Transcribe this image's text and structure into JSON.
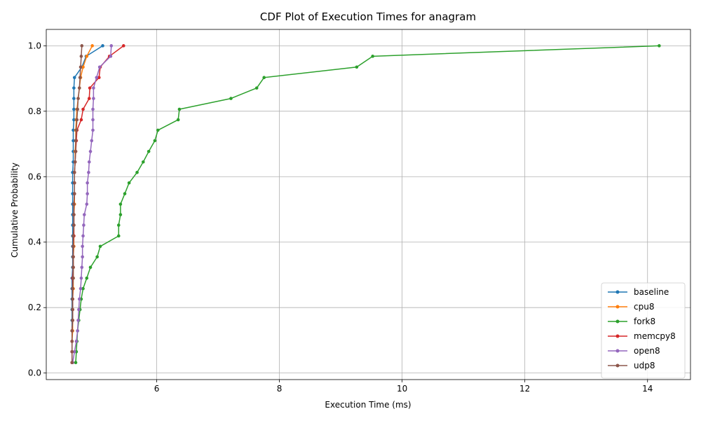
{
  "chart_data": {
    "type": "line",
    "title": "CDF Plot of Execution Times for anagram",
    "xlabel": "Execution Time (ms)",
    "ylabel": "Cumulative Probability",
    "xlim": [
      4.2,
      14.7
    ],
    "ylim": [
      -0.02,
      1.05
    ],
    "x_ticks": [
      6,
      8,
      10,
      12,
      14
    ],
    "y_ticks": [
      0.0,
      0.2,
      0.4,
      0.6,
      0.8,
      1.0
    ],
    "x_tick_labels": [
      "6",
      "8",
      "10",
      "12",
      "14"
    ],
    "y_tick_labels": [
      "0.0",
      "0.2",
      "0.4",
      "0.6",
      "0.8",
      "1.0"
    ],
    "grid": true,
    "legend_position": "lower-right",
    "marker": "circle",
    "probabilities": [
      0.032,
      0.065,
      0.097,
      0.129,
      0.161,
      0.194,
      0.226,
      0.258,
      0.29,
      0.323,
      0.355,
      0.387,
      0.419,
      0.452,
      0.484,
      0.516,
      0.548,
      0.581,
      0.613,
      0.645,
      0.677,
      0.71,
      0.742,
      0.774,
      0.806,
      0.839,
      0.871,
      0.903,
      0.935,
      0.968,
      1.0
    ],
    "series": [
      {
        "name": "baseline",
        "color": "#1f77b4",
        "x": [
          4.62,
          4.62,
          4.62,
          4.62,
          4.62,
          4.62,
          4.62,
          4.62,
          4.62,
          4.63,
          4.63,
          4.63,
          4.63,
          4.63,
          4.63,
          4.63,
          4.63,
          4.63,
          4.63,
          4.64,
          4.64,
          4.64,
          4.64,
          4.65,
          4.65,
          4.65,
          4.65,
          4.66,
          4.78,
          4.85,
          5.12
        ]
      },
      {
        "name": "cpu8",
        "color": "#ff7f0e",
        "x": [
          4.62,
          4.62,
          4.62,
          4.63,
          4.63,
          4.63,
          4.63,
          4.64,
          4.64,
          4.64,
          4.64,
          4.65,
          4.65,
          4.65,
          4.65,
          4.66,
          4.66,
          4.66,
          4.66,
          4.67,
          4.67,
          4.68,
          4.68,
          4.69,
          4.7,
          4.72,
          4.74,
          4.76,
          4.8,
          4.86,
          4.95
        ]
      },
      {
        "name": "fork8",
        "color": "#2ca02c",
        "x": [
          4.68,
          4.69,
          4.7,
          4.71,
          4.73,
          4.75,
          4.77,
          4.8,
          4.86,
          4.92,
          5.03,
          5.08,
          5.38,
          5.38,
          5.41,
          5.41,
          5.48,
          5.55,
          5.68,
          5.78,
          5.87,
          5.97,
          6.02,
          6.35,
          6.37,
          7.21,
          7.63,
          7.75,
          9.26,
          9.52,
          14.19
        ]
      },
      {
        "name": "memcpy8",
        "color": "#d62728",
        "x": [
          4.62,
          4.62,
          4.62,
          4.62,
          4.63,
          4.63,
          4.63,
          4.63,
          4.63,
          4.64,
          4.64,
          4.64,
          4.65,
          4.65,
          4.65,
          4.65,
          4.66,
          4.66,
          4.66,
          4.67,
          4.68,
          4.69,
          4.7,
          4.77,
          4.8,
          4.9,
          4.91,
          5.06,
          5.08,
          5.23,
          5.46
        ]
      },
      {
        "name": "open8",
        "color": "#9467bd",
        "x": [
          4.63,
          4.66,
          4.69,
          4.71,
          4.72,
          4.73,
          4.74,
          4.76,
          4.77,
          4.78,
          4.79,
          4.79,
          4.8,
          4.81,
          4.82,
          4.86,
          4.87,
          4.87,
          4.89,
          4.9,
          4.92,
          4.94,
          4.96,
          4.96,
          4.96,
          4.97,
          4.97,
          5.02,
          5.07,
          5.25,
          5.26
        ]
      },
      {
        "name": "udp8",
        "color": "#8c564b",
        "x": [
          4.62,
          4.62,
          4.62,
          4.62,
          4.63,
          4.63,
          4.63,
          4.63,
          4.64,
          4.64,
          4.64,
          4.64,
          4.64,
          4.65,
          4.65,
          4.65,
          4.66,
          4.66,
          4.66,
          4.67,
          4.68,
          4.68,
          4.69,
          4.7,
          4.71,
          4.72,
          4.74,
          4.75,
          4.76,
          4.77,
          4.78
        ]
      }
    ]
  }
}
